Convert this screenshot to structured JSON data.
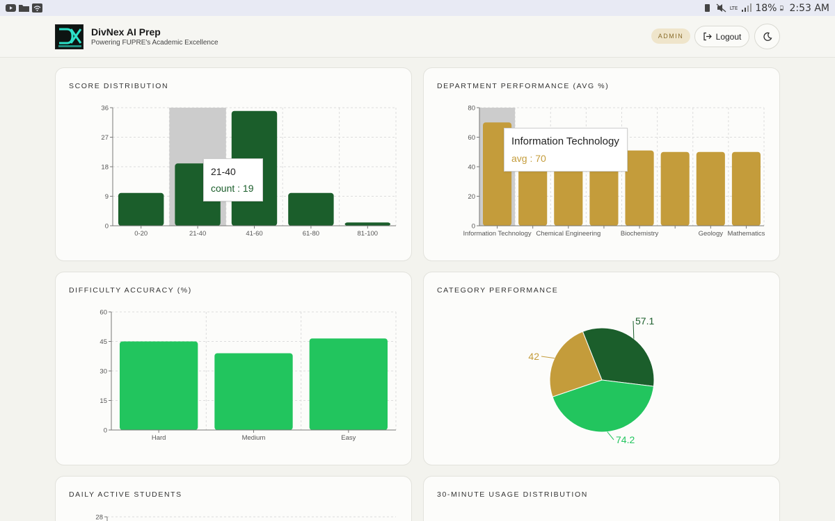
{
  "status_bar": {
    "battery": "18%",
    "time": "2:53 AM",
    "network": "LTE"
  },
  "header": {
    "brand_name": "DivNex AI Prep",
    "tagline": "Powering FUPRE's Academic Excellence",
    "admin_badge": "ADMIN",
    "logout_label": "Logout"
  },
  "colors": {
    "dark_green": "#1b5e2b",
    "gold": "#c49c3b",
    "bright_green": "#22c55e"
  },
  "cards": {
    "score_distribution": {
      "title": "Score Distribution"
    },
    "department_performance": {
      "title": "Department Performance (Avg %)"
    },
    "difficulty_accuracy": {
      "title": "Difficulty Accuracy (%)"
    },
    "category_performance": {
      "title": "Category Performance"
    },
    "daily_active": {
      "title": "Daily Active Students"
    },
    "usage_distribution": {
      "title": "30-Minute Usage Distribution"
    }
  },
  "chart_data": [
    {
      "id": "score_distribution",
      "type": "bar",
      "categories": [
        "0-20",
        "21-40",
        "41-60",
        "61-80",
        "81-100"
      ],
      "values": [
        10,
        19,
        35,
        10,
        1
      ],
      "yticks": [
        "0",
        "9",
        "18",
        "27",
        "36"
      ],
      "ylim": [
        0,
        36
      ],
      "color": "#1b5e2b",
      "tooltip": {
        "label": "21-40",
        "value_text": "count : 19"
      }
    },
    {
      "id": "department_performance",
      "type": "bar",
      "categories": [
        "Information Technology",
        "",
        "Chemical Engineering",
        "",
        "Biochemistry",
        "",
        "Geology",
        "Mathematics"
      ],
      "values": [
        70,
        50,
        50,
        50,
        51,
        50,
        50,
        50
      ],
      "yticks": [
        "0",
        "20",
        "40",
        "60",
        "80"
      ],
      "ylim": [
        0,
        80
      ],
      "color": "#c49c3b",
      "tooltip": {
        "label": "Information Technology",
        "value_text": "avg : 70"
      }
    },
    {
      "id": "difficulty_accuracy",
      "type": "bar",
      "categories": [
        "Hard",
        "Medium",
        "Easy"
      ],
      "values": [
        45,
        39,
        46.5
      ],
      "yticks": [
        "0",
        "15",
        "30",
        "45",
        "60"
      ],
      "ylim": [
        0,
        60
      ],
      "color": "#22c55e"
    },
    {
      "id": "category_performance",
      "type": "pie",
      "slices": [
        {
          "value": 57.1,
          "label": "57.1",
          "color": "#1b5e2b"
        },
        {
          "value": 74.2,
          "label": "74.2",
          "color": "#22c55e"
        },
        {
          "value": 42,
          "label": "42",
          "color": "#c49c3b"
        }
      ]
    },
    {
      "id": "daily_active",
      "type": "line",
      "yticks": [
        "28"
      ]
    }
  ]
}
